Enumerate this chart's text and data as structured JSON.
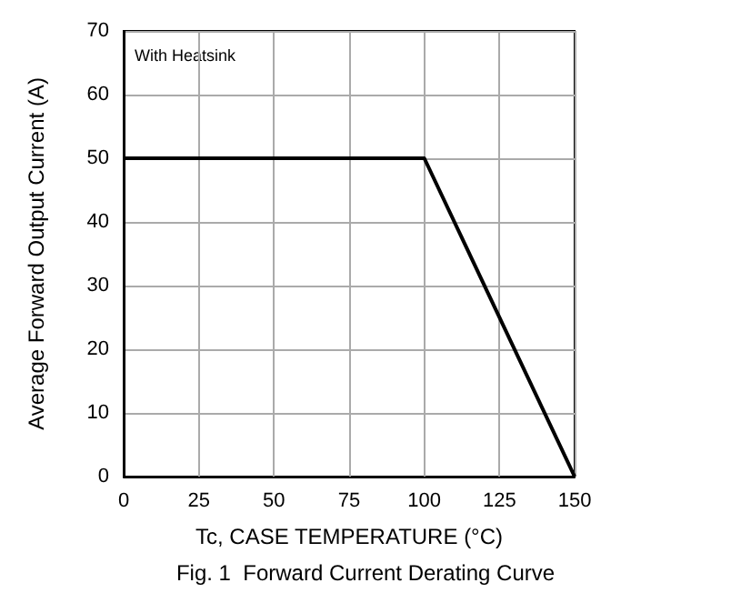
{
  "chart_data": {
    "type": "line",
    "xlabel": "Tc, CASE TEMPERATURE (°C)",
    "ylabel": "Average Forward Output Current (A)",
    "annotations": [
      "With Heatsink",
      "Fig. 1  Forward Current Derating Curve"
    ],
    "x": [
      0,
      100,
      150
    ],
    "series": [
      {
        "color": "#000000",
        "values": [
          50,
          50,
          0
        ]
      }
    ],
    "xlim": [
      0,
      150
    ],
    "xticks": [
      0,
      25,
      50,
      75,
      100,
      125,
      150
    ],
    "ylim": [
      0,
      70
    ],
    "yticks": [
      0,
      10,
      20,
      30,
      40,
      50,
      60,
      70
    ],
    "grid": true,
    "marker": "none",
    "line_style": "solid"
  }
}
